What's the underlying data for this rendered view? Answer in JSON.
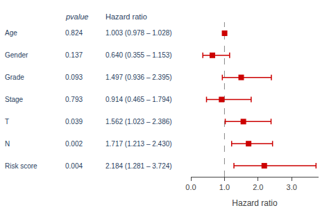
{
  "chart_data": {
    "type": "forest",
    "xlabel": "Hazard ratio",
    "pvalue_header": "pvalue",
    "hr_header": "Hazard ratio",
    "categories": [
      "Age",
      "Gender",
      "Grade",
      "Stage",
      "T",
      "N",
      "Risk score"
    ],
    "values": [
      1.003,
      0.64,
      1.497,
      0.914,
      1.562,
      1.717,
      2.184
    ],
    "ci_low": [
      0.978,
      0.355,
      0.936,
      0.465,
      1.023,
      1.213,
      1.281
    ],
    "ci_high": [
      1.028,
      1.153,
      2.395,
      1.794,
      2.386,
      2.43,
      3.724
    ],
    "pvalues": [
      "0.824",
      "0.137",
      "0.093",
      "0.793",
      "0.039",
      "0.002",
      "0.004"
    ],
    "hr_labels": [
      "1.003 (0.978 – 1.028)",
      "0.640 (0.355 – 1.153)",
      "1.497 (0.936 – 2.395)",
      "0.914 (0.465 – 1.794)",
      "1.562 (1.023 – 2.386)",
      "1.717 (1.213 – 2.430)",
      "2.184 (1.281 – 3.724)"
    ],
    "reference_x": 1.0,
    "xlim": [
      0.0,
      3.8
    ],
    "xticks": [
      {
        "value": 0.0,
        "label": "0.0"
      },
      {
        "value": 1.0,
        "label": "1.0"
      },
      {
        "value": 2.0,
        "label": "2.0"
      },
      {
        "value": 3.0,
        "label": "3.0"
      }
    ],
    "color": "#cc0000",
    "marker": "square",
    "grid": false,
    "tick_labels": "x"
  }
}
